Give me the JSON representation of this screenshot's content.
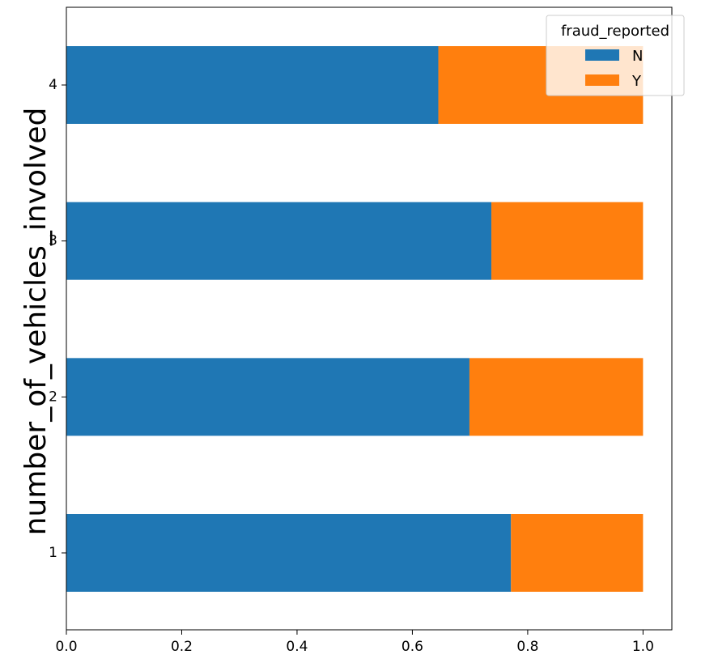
{
  "chart_data": {
    "type": "bar",
    "orientation": "horizontal",
    "stacked": true,
    "ylabel": "number_of_vehicles_involved",
    "xlabel": "",
    "categories": [
      "1",
      "2",
      "3",
      "4"
    ],
    "series": [
      {
        "name": "N",
        "color": "#1f77b4",
        "values": [
          0.771,
          0.699,
          0.737,
          0.645
        ]
      },
      {
        "name": "Y",
        "color": "#ff7f0e",
        "values": [
          0.229,
          0.301,
          0.263,
          0.355
        ]
      }
    ],
    "xlim": [
      0.0,
      1.05
    ],
    "xticks": [
      "0.0",
      "0.2",
      "0.4",
      "0.6",
      "0.8",
      "1.0"
    ],
    "legend": {
      "title": "fraud_reported",
      "placement": "top-right",
      "labels": [
        "N",
        "Y"
      ]
    },
    "grid": false
  }
}
